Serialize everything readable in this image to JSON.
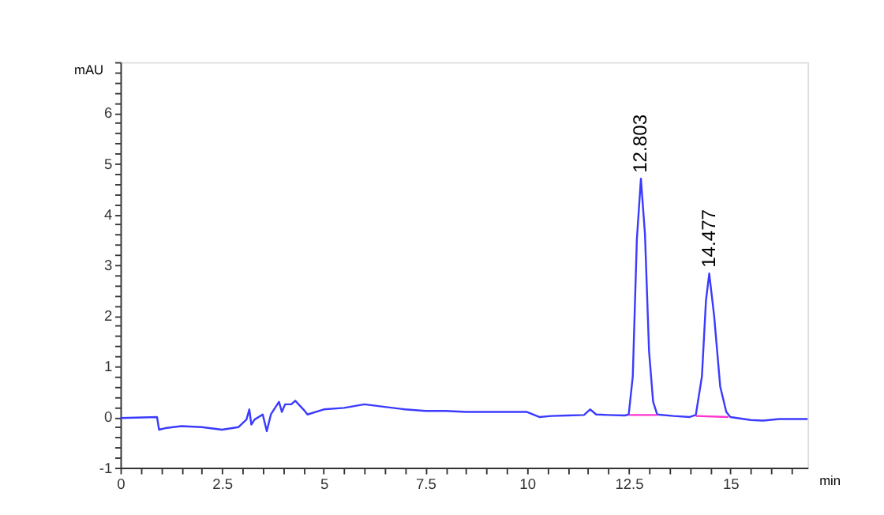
{
  "chart_data": {
    "type": "line",
    "xlabel": "min",
    "ylabel": "mAU",
    "xlim": [
      0,
      16.9
    ],
    "ylim": [
      -1,
      7
    ],
    "xticks": [
      0,
      {
        "value": 0.5,
        "label": null
      },
      {
        "value": 1,
        "label": null
      },
      {
        "value": 1.5,
        "label": null
      },
      {
        "value": 2,
        "label": null
      },
      2.5,
      {
        "value": 3,
        "label": null
      },
      {
        "value": 3.5,
        "label": null
      },
      {
        "value": 4,
        "label": null
      },
      {
        "value": 4.5,
        "label": null
      },
      5,
      {
        "value": 5.5,
        "label": null
      },
      {
        "value": 6,
        "label": null
      },
      {
        "value": 6.5,
        "label": null
      },
      {
        "value": 7,
        "label": null
      },
      7.5,
      {
        "value": 8,
        "label": null
      },
      {
        "value": 8.5,
        "label": null
      },
      {
        "value": 9,
        "label": null
      },
      {
        "value": 9.5,
        "label": null
      },
      10,
      {
        "value": 10.5,
        "label": null
      },
      {
        "value": 11,
        "label": null
      },
      {
        "value": 11.5,
        "label": null
      },
      {
        "value": 12,
        "label": null
      },
      12.5,
      {
        "value": 13,
        "label": null
      },
      {
        "value": 13.5,
        "label": null
      },
      {
        "value": 14,
        "label": null
      },
      {
        "value": 14.5,
        "label": null
      },
      15,
      {
        "value": 15.5,
        "label": null
      },
      {
        "value": 16,
        "label": null
      },
      {
        "value": 16.5,
        "label": null
      }
    ],
    "yticks": [
      -1,
      {
        "value": -0.8,
        "label": null
      },
      {
        "value": -0.6,
        "label": null
      },
      {
        "value": -0.4,
        "label": null
      },
      {
        "value": -0.2,
        "label": null
      },
      0,
      {
        "value": 0.2,
        "label": null
      },
      {
        "value": 0.4,
        "label": null
      },
      {
        "value": 0.6,
        "label": null
      },
      {
        "value": 0.8,
        "label": null
      },
      1,
      {
        "value": 1.2,
        "label": null
      },
      {
        "value": 1.4,
        "label": null
      },
      {
        "value": 1.6,
        "label": null
      },
      {
        "value": 1.8,
        "label": null
      },
      2,
      {
        "value": 2.2,
        "label": null
      },
      {
        "value": 2.4,
        "label": null
      },
      {
        "value": 2.6,
        "label": null
      },
      {
        "value": 2.8,
        "label": null
      },
      3,
      {
        "value": 3.2,
        "label": null
      },
      {
        "value": 3.4,
        "label": null
      },
      {
        "value": 3.6,
        "label": null
      },
      {
        "value": 3.8,
        "label": null
      },
      4,
      {
        "value": 4.2,
        "label": null
      },
      {
        "value": 4.4,
        "label": null
      },
      {
        "value": 4.6,
        "label": null
      },
      {
        "value": 4.8,
        "label": null
      },
      5,
      {
        "value": 5.2,
        "label": null
      },
      {
        "value": 5.4,
        "label": null
      },
      {
        "value": 5.6,
        "label": null
      },
      {
        "value": 5.8,
        "label": null
      },
      6,
      {
        "value": 6.2,
        "label": null
      },
      {
        "value": 6.4,
        "label": null
      },
      {
        "value": 6.6,
        "label": null
      },
      {
        "value": 6.8,
        "label": null
      },
      {
        "value": 7,
        "label": null
      }
    ],
    "grid": false,
    "marker": "none",
    "line_style": "solid",
    "series": [
      {
        "color": "#3b3bff",
        "x": [
          0,
          0.9,
          0.95,
          1.1,
          1.5,
          2.0,
          2.5,
          2.9,
          3.1,
          3.17,
          3.22,
          3.3,
          3.5,
          3.6,
          3.7,
          3.9,
          3.97,
          4.05,
          4.2,
          4.3,
          4.5,
          4.6,
          5.0,
          5.5,
          6.0,
          6.5,
          7.0,
          7.5,
          8.0,
          8.5,
          9.0,
          9.5,
          10.0,
          10.3,
          10.6,
          11.0,
          11.4,
          11.55,
          11.7,
          12.0,
          12.4,
          12.5,
          12.6,
          12.7,
          12.8,
          12.9,
          13.0,
          13.1,
          13.2,
          13.6,
          14.0,
          14.15,
          14.3,
          14.4,
          14.48,
          14.6,
          14.75,
          14.9,
          15.0,
          15.5,
          15.8,
          16.2,
          16.9
        ],
        "values": [
          -0.02,
          0.0,
          -0.25,
          -0.22,
          -0.18,
          -0.2,
          -0.25,
          -0.2,
          -0.05,
          0.15,
          -0.15,
          -0.05,
          0.05,
          -0.28,
          0.05,
          0.3,
          0.1,
          0.25,
          0.25,
          0.32,
          0.15,
          0.05,
          0.15,
          0.18,
          0.25,
          0.2,
          0.15,
          0.12,
          0.12,
          0.1,
          0.1,
          0.1,
          0.1,
          0.0,
          0.02,
          0.03,
          0.04,
          0.15,
          0.05,
          0.04,
          0.03,
          0.05,
          0.8,
          3.5,
          4.7,
          3.6,
          1.3,
          0.3,
          0.05,
          0.02,
          0.0,
          0.04,
          0.8,
          2.3,
          2.83,
          2.0,
          0.6,
          0.1,
          0.0,
          -0.06,
          -0.07,
          -0.04,
          -0.04
        ]
      },
      {
        "color": "#ff33cc",
        "x": [
          12.5,
          13.2
        ],
        "values": [
          0.04,
          0.04
        ]
      },
      {
        "color": "#ff33cc",
        "x": [
          14.15,
          14.95
        ],
        "values": [
          0.02,
          0.0
        ]
      }
    ],
    "annotations": [
      {
        "text": "12.803",
        "x": 12.8,
        "y": 4.7
      },
      {
        "text": "14.477",
        "x": 14.48,
        "y": 2.83
      }
    ]
  }
}
